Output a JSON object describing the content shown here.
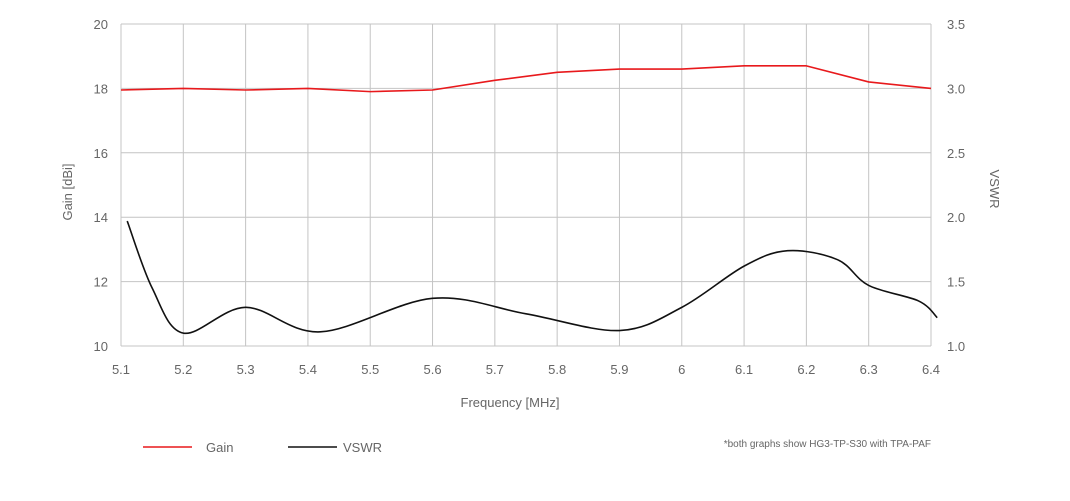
{
  "chart_data": {
    "type": "line",
    "xlabel": "Frequency [MHz]",
    "ylabel_left": "Gain [dBi]",
    "ylabel_right": "VSWR",
    "x_ticks": [
      "5.1",
      "5.2",
      "5.3",
      "5.4",
      "5.5",
      "5.6",
      "5.7",
      "5.8",
      "5.9",
      "6",
      "6.1",
      "6.2",
      "6.3",
      "6.4"
    ],
    "y_left_ticks": [
      "10",
      "12",
      "14",
      "16",
      "18",
      "20"
    ],
    "y_right_ticks": [
      "1.0",
      "1.5",
      "2.0",
      "2.5",
      "3.0",
      "3.5"
    ],
    "xlim": [
      5.1,
      6.4
    ],
    "ylim_left": [
      10,
      20
    ],
    "ylim_right": [
      1.0,
      3.5
    ],
    "grid": true,
    "legend_position": "bottom-left",
    "series": [
      {
        "name": "Gain",
        "axis": "left",
        "color": "#e8191c",
        "smooth": false,
        "x": [
          5.1,
          5.2,
          5.3,
          5.4,
          5.5,
          5.6,
          5.7,
          5.8,
          5.9,
          6.0,
          6.1,
          6.2,
          6.3,
          6.4
        ],
        "y": [
          17.95,
          18.0,
          17.95,
          18.0,
          17.9,
          17.95,
          18.25,
          18.5,
          18.6,
          18.6,
          18.7,
          18.7,
          18.2,
          18.0
        ]
      },
      {
        "name": "VSWR",
        "axis": "right",
        "color": "#111111",
        "smooth": true,
        "x": [
          5.11,
          5.15,
          5.2,
          5.3,
          5.42,
          5.6,
          5.75,
          5.9,
          6.0,
          6.1,
          6.17,
          6.25,
          6.3,
          6.38,
          6.41
        ],
        "y": [
          1.97,
          1.45,
          1.1,
          1.3,
          1.11,
          1.37,
          1.25,
          1.12,
          1.3,
          1.62,
          1.74,
          1.67,
          1.47,
          1.35,
          1.22
        ]
      }
    ],
    "footnote": "*both graphs show HG3-TP-S30 with TPA-PAF"
  }
}
